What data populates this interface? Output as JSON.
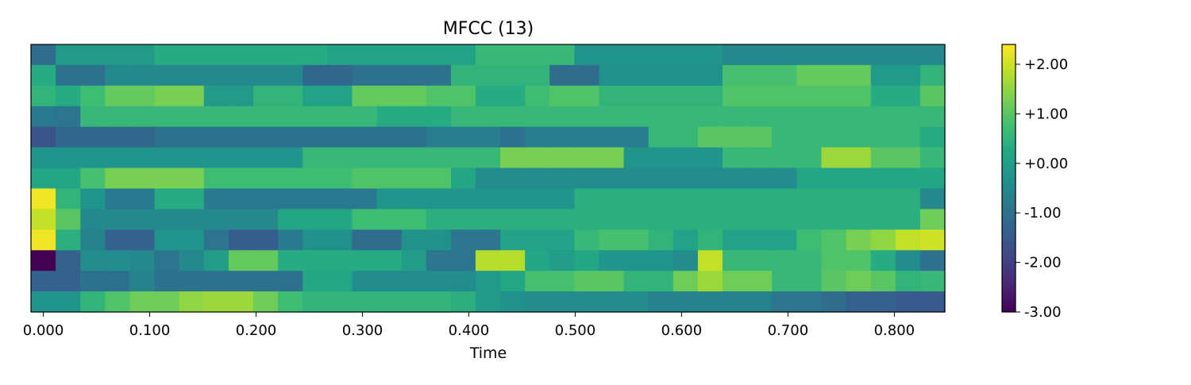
{
  "chart_data": {
    "type": "heatmap",
    "title": "MFCC (13)",
    "xlabel": "Time",
    "ylabel": "",
    "xlim": [
      -0.0116,
      0.8475
    ],
    "x_ticks": [
      0.0,
      0.1,
      0.2,
      0.3,
      0.4,
      0.5,
      0.6,
      0.7,
      0.8
    ],
    "x_tick_labels": [
      "0.000",
      "0.100",
      "0.200",
      "0.300",
      "0.400",
      "0.500",
      "0.600",
      "0.700",
      "0.800"
    ],
    "frame_step": 0.0232,
    "n_coefficients": 13,
    "n_frames": 37,
    "colormap": "viridis",
    "colorbar": {
      "range": [
        -3.0,
        2.4
      ],
      "ticks": [
        2.0,
        1.0,
        0.0,
        -1.0,
        -2.0,
        -3.0
      ],
      "tick_labels": [
        "+2.00",
        "+1.00",
        "+0.00",
        "-1.00",
        "-2.00",
        "-3.00"
      ]
    },
    "values": [
      [
        -1.1,
        -0.1,
        -0.1,
        -0.1,
        -0.1,
        0.3,
        0.3,
        0.3,
        0.3,
        0.3,
        0.3,
        0.3,
        0.1,
        0.1,
        0.1,
        0.1,
        0.1,
        0.1,
        0.6,
        0.6,
        0.6,
        0.6,
        -0.2,
        -0.2,
        -0.2,
        -0.2,
        -0.2,
        -0.2,
        -0.5,
        -0.5,
        -0.5,
        -0.5,
        -0.5,
        -0.5,
        -0.5,
        -0.5,
        -0.5
      ],
      [
        0.3,
        -1.0,
        -1.0,
        -0.5,
        -0.5,
        -0.5,
        -0.5,
        -0.5,
        -0.5,
        -0.5,
        -0.5,
        -1.2,
        -1.2,
        -1.0,
        -1.0,
        -1.0,
        -1.0,
        0.5,
        0.5,
        0.5,
        0.5,
        -1.1,
        -1.1,
        -0.3,
        -0.3,
        -0.3,
        -0.3,
        -0.3,
        0.8,
        0.8,
        0.8,
        1.1,
        1.1,
        1.1,
        -0.1,
        -0.1,
        0.5
      ],
      [
        0.5,
        0.3,
        0.7,
        1.1,
        1.1,
        1.3,
        1.3,
        -0.1,
        -0.1,
        0.5,
        0.5,
        0.1,
        0.1,
        1.1,
        1.1,
        1.1,
        0.9,
        0.9,
        0.3,
        0.3,
        0.7,
        0.9,
        0.9,
        0.5,
        0.5,
        0.5,
        0.5,
        0.5,
        0.9,
        0.9,
        0.9,
        0.9,
        0.9,
        0.9,
        0.3,
        0.3,
        1.0
      ],
      [
        -0.8,
        -0.9,
        0.6,
        0.6,
        0.6,
        0.6,
        0.6,
        0.6,
        0.6,
        0.6,
        0.6,
        0.6,
        0.6,
        0.6,
        0.3,
        0.3,
        0.3,
        0.6,
        0.6,
        0.6,
        0.6,
        0.6,
        0.6,
        0.6,
        0.6,
        0.6,
        0.6,
        0.6,
        0.6,
        0.6,
        0.6,
        0.6,
        0.6,
        0.6,
        0.6,
        0.6,
        0.6
      ],
      [
        -1.6,
        -1.2,
        -1.2,
        -1.2,
        -1.2,
        -1.0,
        -1.0,
        -1.0,
        -1.0,
        -1.0,
        -1.0,
        -1.0,
        -1.0,
        -1.0,
        -1.0,
        -1.0,
        -0.7,
        -0.7,
        -0.7,
        -1.0,
        -0.7,
        -0.7,
        -0.7,
        -0.7,
        -0.7,
        0.6,
        0.6,
        1.0,
        1.0,
        1.0,
        0.6,
        0.6,
        0.6,
        0.6,
        0.6,
        0.6,
        0.3
      ],
      [
        -0.2,
        -0.2,
        -0.2,
        -0.2,
        -0.2,
        -0.2,
        -0.2,
        -0.2,
        -0.2,
        -0.2,
        -0.2,
        0.6,
        0.6,
        0.6,
        0.6,
        0.6,
        0.6,
        0.6,
        0.6,
        1.3,
        1.3,
        1.3,
        1.3,
        1.3,
        -0.2,
        -0.2,
        -0.2,
        -0.2,
        0.6,
        0.6,
        0.6,
        0.6,
        1.6,
        1.6,
        1.0,
        1.0,
        0.6
      ],
      [
        0.2,
        0.2,
        0.8,
        1.3,
        1.3,
        1.3,
        1.3,
        0.7,
        0.7,
        0.7,
        0.7,
        0.7,
        0.7,
        0.9,
        0.9,
        0.9,
        0.9,
        0.2,
        -0.4,
        -0.4,
        -0.4,
        -0.4,
        -0.4,
        -0.4,
        -0.4,
        -0.4,
        -0.4,
        -0.4,
        -0.4,
        -0.4,
        -0.4,
        0.2,
        0.2,
        0.2,
        0.2,
        0.2,
        0.2
      ],
      [
        2.3,
        0.5,
        -0.2,
        -0.8,
        -0.8,
        0.3,
        0.3,
        -0.8,
        -0.8,
        -0.8,
        -0.8,
        -0.8,
        -0.8,
        -0.8,
        -0.2,
        -0.2,
        -0.2,
        -0.2,
        -0.2,
        -0.2,
        -0.2,
        -0.2,
        0.4,
        0.4,
        0.4,
        0.4,
        0.4,
        0.4,
        0.4,
        0.4,
        0.4,
        0.4,
        0.4,
        0.4,
        0.4,
        0.4,
        -0.5
      ],
      [
        1.9,
        1.0,
        -0.5,
        -0.5,
        -0.5,
        -0.5,
        -0.5,
        -0.5,
        -0.5,
        -0.5,
        0.2,
        0.2,
        0.2,
        0.7,
        0.7,
        0.7,
        0.4,
        0.4,
        0.4,
        0.4,
        0.4,
        0.4,
        0.4,
        0.4,
        0.4,
        0.4,
        0.4,
        0.4,
        0.4,
        0.4,
        0.4,
        0.4,
        0.4,
        0.4,
        0.4,
        0.4,
        1.2
      ],
      [
        2.3,
        0.4,
        -0.6,
        -1.3,
        -1.3,
        -0.2,
        -0.2,
        -0.9,
        -1.4,
        -1.4,
        -0.8,
        -0.3,
        -0.3,
        -1.1,
        -1.1,
        -0.3,
        -0.3,
        -0.9,
        -0.9,
        0.1,
        0.1,
        0.1,
        0.6,
        0.8,
        0.8,
        0.5,
        0.1,
        0.5,
        0.1,
        0.1,
        0.1,
        0.7,
        0.9,
        1.3,
        1.5,
        1.9,
        2.0
      ],
      [
        -3.0,
        -1.3,
        -0.4,
        -0.4,
        -0.5,
        -0.9,
        -0.5,
        0.0,
        1.1,
        1.1,
        0.3,
        0.3,
        0.3,
        0.3,
        0.3,
        0.0,
        -0.9,
        -0.9,
        1.8,
        1.8,
        0.2,
        0.0,
        0.2,
        -0.2,
        -0.2,
        -0.2,
        -0.4,
        1.9,
        0.6,
        0.6,
        0.6,
        0.6,
        0.9,
        0.9,
        0.3,
        -0.4,
        -1.0
      ],
      [
        -1.3,
        -1.3,
        -1.0,
        -1.0,
        -0.6,
        -1.0,
        -1.0,
        -1.0,
        -1.0,
        -1.0,
        -1.0,
        0.2,
        0.2,
        -0.4,
        -0.4,
        -0.4,
        -0.4,
        -0.4,
        -0.1,
        0.2,
        0.8,
        0.8,
        1.0,
        1.0,
        0.5,
        0.5,
        1.2,
        1.6,
        1.2,
        1.2,
        0.6,
        0.6,
        1.0,
        1.2,
        1.0,
        0.5,
        0.6
      ],
      [
        -0.2,
        -0.2,
        0.5,
        0.9,
        1.2,
        1.2,
        1.5,
        1.6,
        1.6,
        1.2,
        0.7,
        0.5,
        0.5,
        0.5,
        0.5,
        0.5,
        0.5,
        0.4,
        -0.1,
        -0.3,
        -0.4,
        -0.4,
        -0.4,
        -0.4,
        -0.4,
        -0.6,
        -0.6,
        -0.6,
        -0.6,
        -0.6,
        -0.9,
        -0.9,
        -1.1,
        -1.3,
        -1.3,
        -1.5,
        -1.5
      ]
    ]
  }
}
